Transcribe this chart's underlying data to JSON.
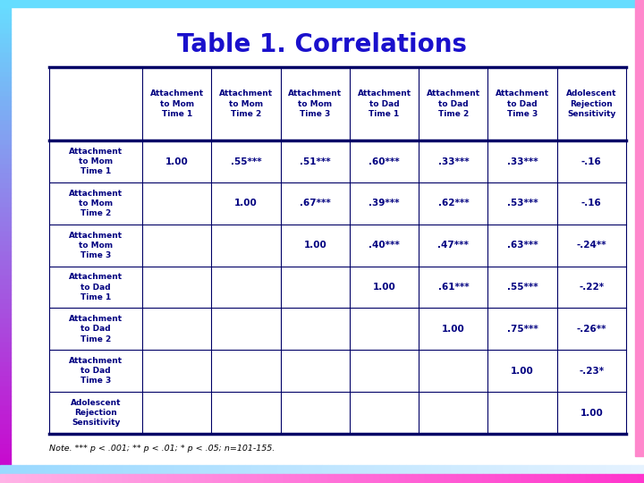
{
  "title": "Table 1. Correlations",
  "title_color": "#1a10cc",
  "title_fontsize": 20,
  "col_headers": [
    "Attachment\nto Mom\nTime 1",
    "Attachment\nto Mom\nTime 2",
    "Attachment\nto Mom\nTime 3",
    "Attachment\nto Dad\nTime 1",
    "Attachment\nto Dad\nTime 2",
    "Attachment\nto Dad\nTime 3",
    "Adolescent\nRejection\nSensitivity"
  ],
  "row_headers": [
    "Attachment\nto Mom\nTime 1",
    "Attachment\nto Mom\nTime 2",
    "Attachment\nto Mom\nTime 3",
    "Attachment\nto Dad\nTime 1",
    "Attachment\nto Dad\nTime 2",
    "Attachment\nto Dad\nTime 3",
    "Adolescent\nRejection\nSensitivity"
  ],
  "cell_data": [
    [
      "1.00",
      ".55***",
      ".51***",
      ".60***",
      ".33***",
      ".33***",
      "-.16"
    ],
    [
      "",
      "1.00",
      ".67***",
      ".39***",
      ".62***",
      ".53***",
      "-.16"
    ],
    [
      "",
      "",
      "1.00",
      ".40***",
      ".47***",
      ".63***",
      "-.24**"
    ],
    [
      "",
      "",
      "",
      "1.00",
      ".61***",
      ".55***",
      "-.22*"
    ],
    [
      "",
      "",
      "",
      "",
      "1.00",
      ".75***",
      "-.26**"
    ],
    [
      "",
      "",
      "",
      "",
      "",
      "1.00",
      "-.23*"
    ],
    [
      "",
      "",
      "",
      "",
      "",
      "",
      "1.00"
    ]
  ],
  "note": "Note. *** p < .001; ** p < .01; * p < .05; n=101-155.",
  "background_color": "#ffffff",
  "text_color": "#000080",
  "border_color": "#000066",
  "fig_bg_color": "#ffffff"
}
